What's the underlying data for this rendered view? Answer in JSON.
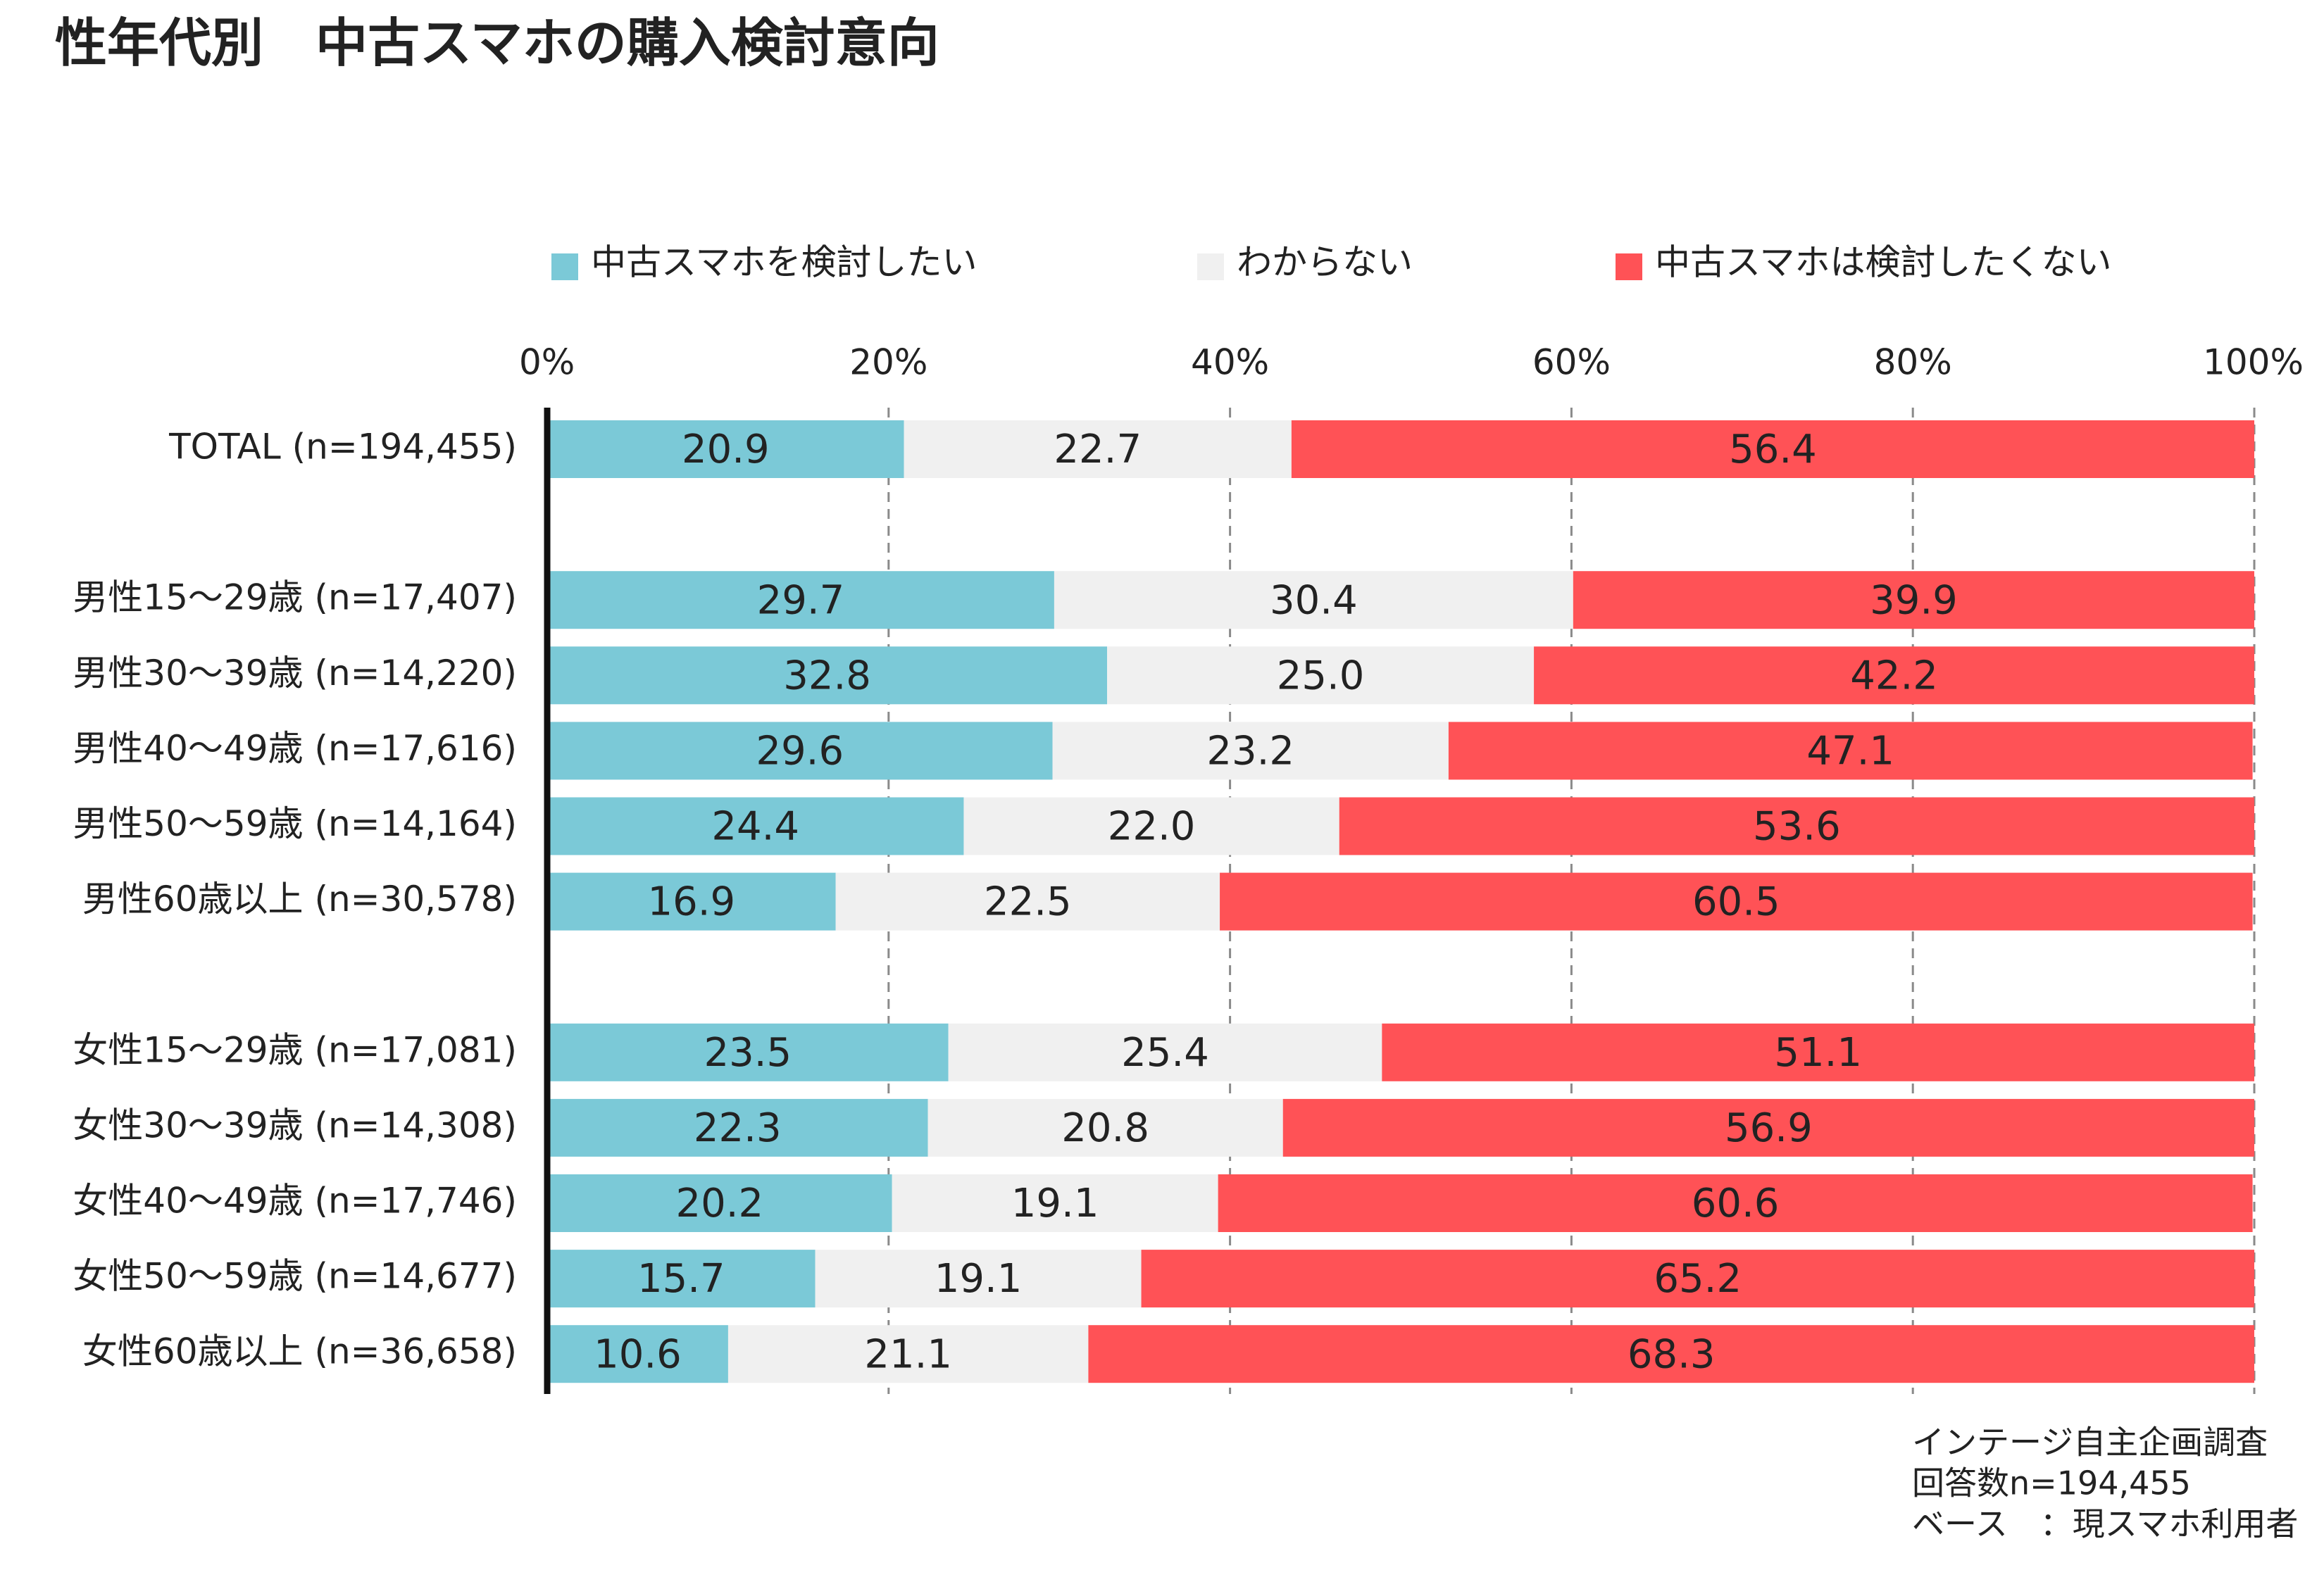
{
  "chart_data": {
    "type": "stacked-bar-horizontal",
    "title": "性年代別　中古スマホの購入検討意向",
    "categories": [
      "TOTAL (n=194,455)",
      null,
      "男性15～29歳 (n=17,407)",
      "男性30～39歳 (n=14,220)",
      "男性40～49歳 (n=17,616)",
      "男性50～59歳 (n=14,164)",
      "男性60歳以上 (n=30,578)",
      null,
      "女性15～29歳 (n=17,081)",
      "女性30～39歳 (n=14,308)",
      "女性40～49歳 (n=17,746)",
      "女性50～59歳 (n=14,677)",
      "女性60歳以上 (n=36,658)"
    ],
    "series": [
      {
        "name": "中古スマホを検討したい",
        "color": "#7bc9d7",
        "values": [
          20.9,
          null,
          29.7,
          32.8,
          29.6,
          24.4,
          16.9,
          null,
          23.5,
          22.3,
          20.2,
          15.7,
          10.6
        ],
        "value_labels": [
          "20.9",
          null,
          "29.7",
          "32.8",
          "29.6",
          "24.4",
          "16.9",
          null,
          "23.5",
          "22.3",
          "20.2",
          "15.7",
          "10.6"
        ]
      },
      {
        "name": "わからない",
        "color": "#f0f0f0",
        "values": [
          22.7,
          null,
          30.4,
          25.0,
          23.2,
          22.0,
          22.5,
          null,
          25.4,
          20.8,
          19.1,
          19.1,
          21.1
        ],
        "value_labels": [
          "22.7",
          null,
          "30.4",
          "25.0",
          "23.2",
          "22.0",
          "22.5",
          null,
          "25.4",
          "20.8",
          "19.1",
          "19.1",
          "21.1"
        ]
      },
      {
        "name": "中古スマホは検討したくない",
        "color": "#ff5256",
        "values": [
          56.4,
          null,
          39.9,
          42.2,
          47.1,
          53.6,
          60.5,
          null,
          51.1,
          56.9,
          60.6,
          65.2,
          68.3
        ],
        "value_labels": [
          "56.4",
          null,
          "39.9",
          "42.2",
          "47.1",
          "53.6",
          "60.5",
          null,
          "51.1",
          "56.9",
          "60.6",
          "65.2",
          "68.3"
        ]
      }
    ],
    "xlim": [
      0,
      100
    ],
    "xticks": [
      {
        "value": 0,
        "label": "0%"
      },
      {
        "value": 20,
        "label": "20%"
      },
      {
        "value": 40,
        "label": "40%"
      },
      {
        "value": 60,
        "label": "60%"
      },
      {
        "value": 80,
        "label": "80%"
      },
      {
        "value": 100,
        "label": "100%"
      }
    ],
    "grid": true,
    "legend": "top",
    "annotations": [
      "インテージ自主企画調査",
      "回答数n=194,455",
      "ベース　：現スマホ利用者"
    ]
  }
}
